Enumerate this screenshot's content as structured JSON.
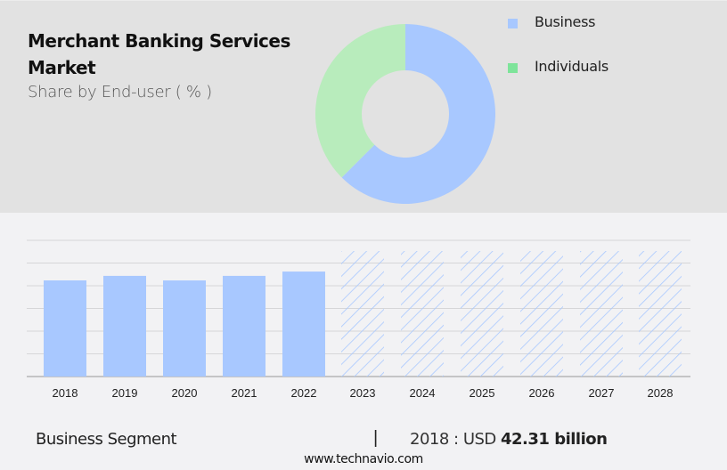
{
  "header": {
    "title_line1": "Merchant Banking Services",
    "title_line2": "Market",
    "subtitle": "Share by End-user ( % )"
  },
  "legend": [
    {
      "label": "Business",
      "color": "#a8c8ff"
    },
    {
      "label": "Individuals",
      "color": "#7ee49a"
    }
  ],
  "footer": {
    "segment": "Business Segment",
    "divider": "|",
    "value_prefix": "2018 : USD ",
    "value_bold": "42.31 billion",
    "url": "www.technavio.com"
  },
  "chart_data": [
    {
      "type": "pie",
      "title": "Merchant Banking Services Market - Share by End-user ( % )",
      "donut": true,
      "categories": [
        "Business",
        "Individuals"
      ],
      "values": [
        62.5,
        37.5
      ],
      "colors": [
        "#a8c8ff",
        "#b8ecbc"
      ],
      "legend_position": "right"
    },
    {
      "type": "bar",
      "title": "Business Segment",
      "categories": [
        "2018",
        "2019",
        "2020",
        "2021",
        "2022",
        "2023",
        "2024",
        "2025",
        "2026",
        "2027",
        "2028"
      ],
      "values": [
        42.31,
        44.3,
        42.3,
        44.3,
        46.2,
        null,
        null,
        null,
        null,
        null,
        null
      ],
      "forecast": [
        false,
        false,
        false,
        false,
        false,
        true,
        true,
        true,
        true,
        true,
        true
      ],
      "xlabel": "",
      "ylabel": "USD billion",
      "ylim": [
        0,
        60
      ],
      "grid": true,
      "annotation": "2018 : USD 42.31 billion",
      "bar_color": "#a8c8ff"
    }
  ]
}
